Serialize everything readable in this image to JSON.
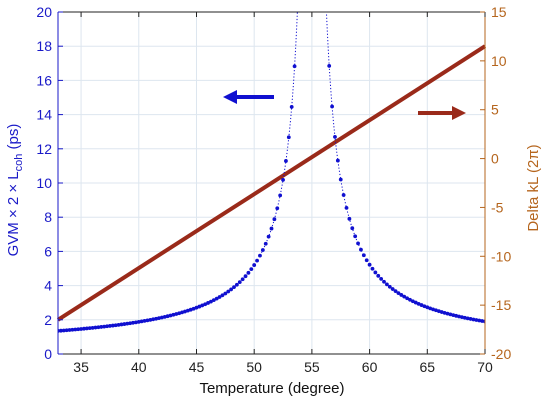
{
  "chart_data": {
    "type": "scatter",
    "xlabel": "Temperature (degree)",
    "ylabel_left": "GVM × 2 × L",
    "ylabel_left_sub": "coh",
    "ylabel_left_unit": " (ps)",
    "ylabel_right": "Delta kL (2π)",
    "xlim": [
      33,
      70
    ],
    "ylim_left": [
      0,
      20
    ],
    "ylim_right": [
      -20,
      15
    ],
    "x_ticks": [
      "35",
      "40",
      "45",
      "50",
      "55",
      "60",
      "65",
      "70"
    ],
    "x_tick_values": [
      35,
      40,
      45,
      50,
      55,
      60,
      65,
      70
    ],
    "y_left_ticks": [
      "0",
      "2",
      "4",
      "6",
      "8",
      "10",
      "12",
      "14",
      "16",
      "18",
      "20"
    ],
    "y_left_tick_values": [
      0,
      2,
      4,
      6,
      8,
      10,
      12,
      14,
      16,
      18,
      20
    ],
    "y_right_ticks": [
      "-20",
      "-15",
      "-10",
      "-5",
      "0",
      "5",
      "10",
      "15"
    ],
    "y_right_tick_values": [
      -20,
      -15,
      -10,
      -5,
      0,
      5,
      10,
      15
    ],
    "grid": true,
    "series": [
      {
        "axis": "left",
        "style": "dots",
        "color": "#1010d0",
        "x_range": [
          33,
          70
        ],
        "x_step": 0.25,
        "singularity_x": 55,
        "fit_points": [
          [
            33,
            1.35
          ],
          [
            50,
            5.2
          ],
          [
            70,
            1.9
          ]
        ]
      },
      {
        "axis": "right",
        "style": "line",
        "color": "#9a2a1a",
        "line": [
          [
            33,
            -16.5
          ],
          [
            70,
            11.5
          ]
        ]
      }
    ],
    "annotations": [
      {
        "type": "arrow",
        "direction": "left",
        "color": "#1010d0",
        "points_to": "left-axis"
      },
      {
        "type": "arrow",
        "direction": "right",
        "color": "#9a2a1a",
        "points_to": "right-axis"
      }
    ],
    "colors": {
      "left_axis": "#1a1ac8",
      "right_axis": "#b5651d",
      "grid": "#dde6ef"
    }
  }
}
